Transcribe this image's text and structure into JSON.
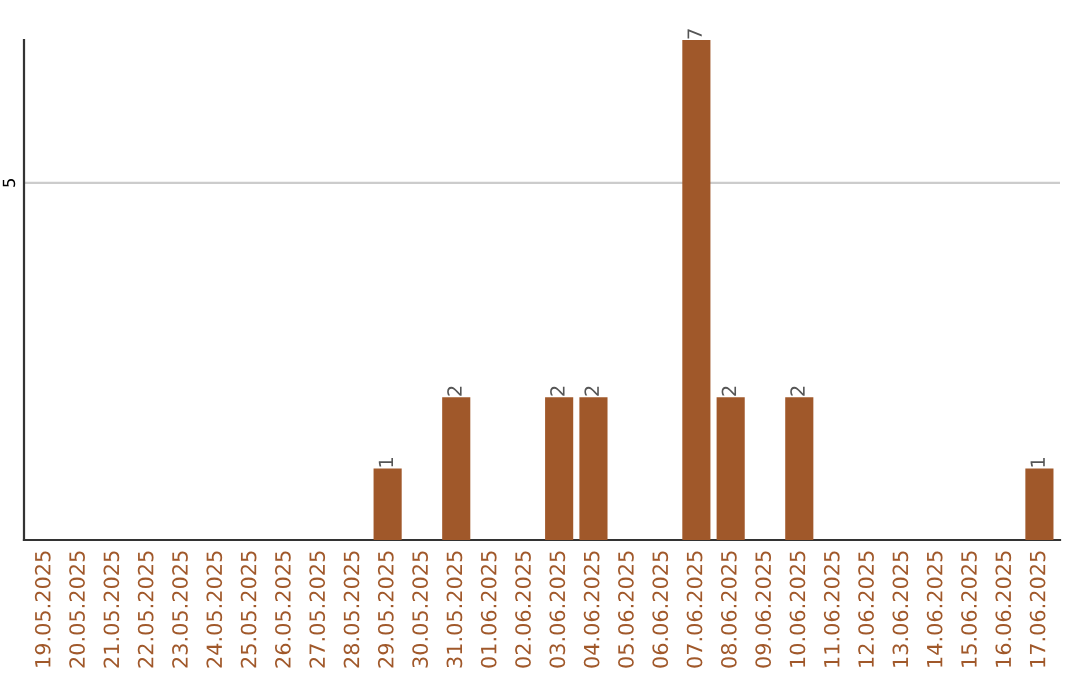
{
  "chart_data": {
    "type": "bar",
    "categories": [
      "19.05.2025",
      "20.05.2025",
      "21.05.2025",
      "22.05.2025",
      "23.05.2025",
      "24.05.2025",
      "25.05.2025",
      "26.05.2025",
      "27.05.2025",
      "28.05.2025",
      "29.05.2025",
      "30.05.2025",
      "31.05.2025",
      "01.06.2025",
      "02.06.2025",
      "03.06.2025",
      "04.06.2025",
      "05.06.2025",
      "06.06.2025",
      "07.06.2025",
      "08.06.2025",
      "09.06.2025",
      "10.06.2025",
      "11.06.2025",
      "12.06.2025",
      "13.06.2025",
      "14.06.2025",
      "15.06.2025",
      "16.06.2025",
      "17.06.2025"
    ],
    "values": [
      0,
      0,
      0,
      0,
      0,
      0,
      0,
      0,
      0,
      0,
      1,
      0,
      2,
      0,
      0,
      2,
      2,
      0,
      0,
      7,
      2,
      0,
      2,
      0,
      0,
      0,
      0,
      0,
      0,
      1
    ],
    "value_labels": [
      null,
      null,
      null,
      null,
      null,
      null,
      null,
      null,
      null,
      null,
      "1",
      null,
      "2",
      null,
      null,
      "2",
      "2",
      null,
      null,
      "7",
      "2",
      null,
      "2",
      null,
      null,
      null,
      null,
      null,
      null,
      "1"
    ],
    "color": "#a0582a",
    "ylim": [
      0,
      7
    ],
    "yticks": [
      5
    ],
    "grid": "y"
  }
}
